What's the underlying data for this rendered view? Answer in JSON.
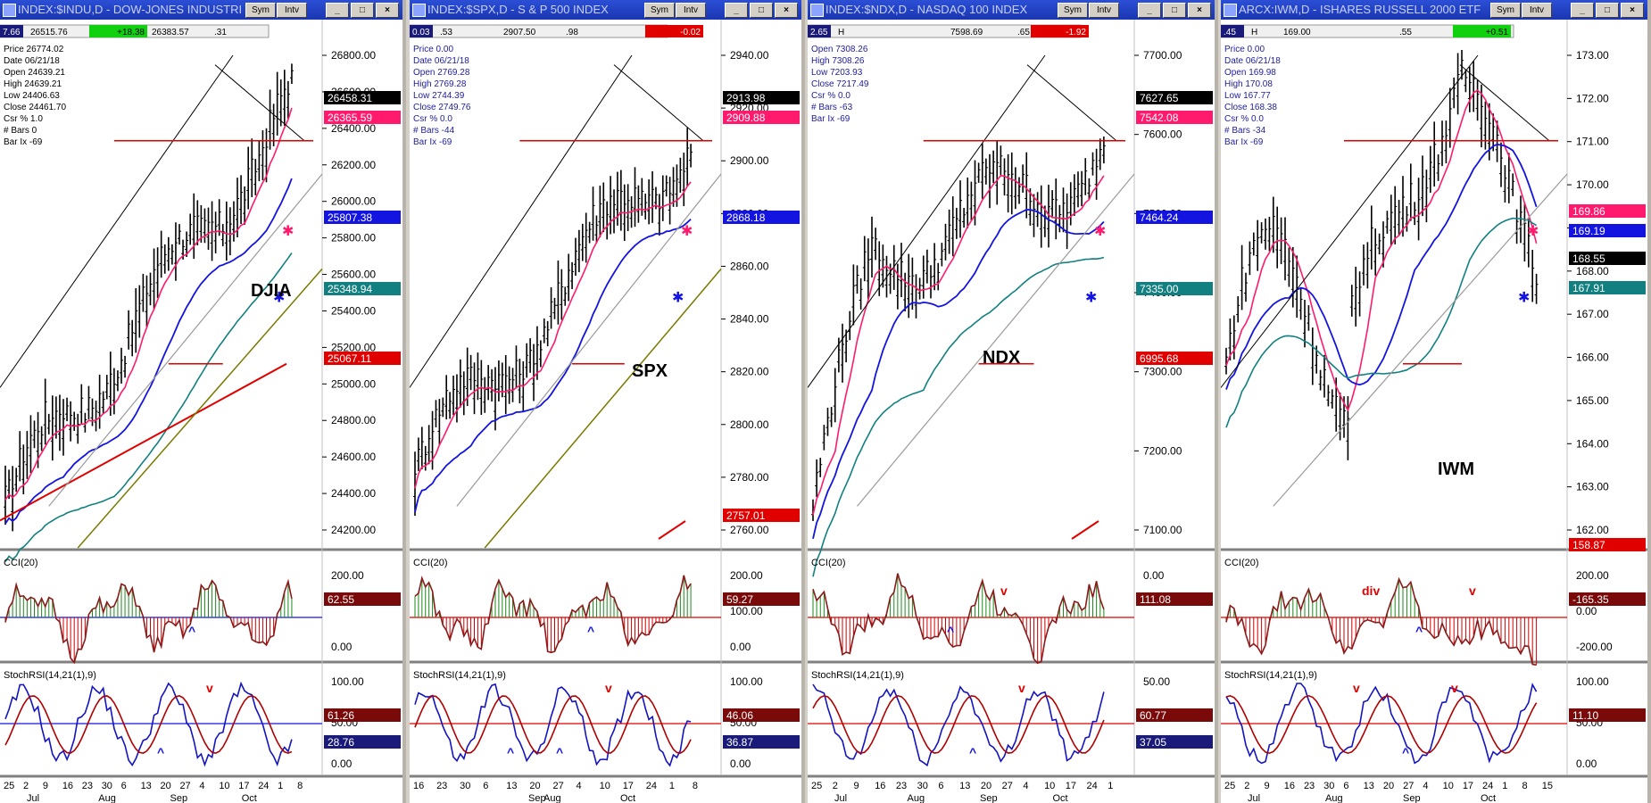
{
  "colors": {
    "price": "#000000",
    "ma_fast": "#ff1a6e",
    "ma_blue": "#1414e0",
    "ma_teal": "#128080",
    "ma_red": "#e00000",
    "olive": "#7a7a00",
    "gray": "#9a9a9a",
    "cci_pos": "#1a8a1a",
    "cci_neg": "#d00000",
    "stoch_blue": "#1414c0",
    "stoch_red": "#b00000"
  },
  "icons": [
    "system-menu-icon",
    "minimize-icon",
    "maximize-icon",
    "close-icon",
    "star-marker-icon",
    "caret-marker-icon"
  ],
  "panels": [
    {
      "title": "INDEX:$INDU,D - DOW-JONES INDUSTRI",
      "sym_label": "Sym",
      "intv_label": "Intv",
      "quote": {
        "open_box": "7.66",
        "val1": "26515.76",
        "change": "+18.38",
        "val2": "26383.57",
        "val3": ".31"
      },
      "info": [
        "Price 26774.02",
        "Date 06/21/18",
        "Open 24639.21",
        "High 24639.21",
        "Low 24406.63",
        "Close 24461.70",
        "Csr % 1.0",
        "# Bars 0",
        "Bar Ix -69"
      ],
      "chart_label": "DJIA",
      "price_tags": [
        {
          "text": "26458.31",
          "bg": "#000000"
        },
        {
          "text": "26365.59",
          "bg": "#ff1a6e"
        },
        {
          "text": "25807.38",
          "bg": "#1414e0"
        },
        {
          "text": "25348.94",
          "bg": "#128080"
        },
        {
          "text": "25067.11",
          "bg": "#e00000"
        }
      ],
      "y_ticks": [
        "26800.00",
        "26600.00",
        "26400.00",
        "26200.00",
        "26000.00",
        "25800.00",
        "25600.00",
        "25400.00",
        "25200.00",
        "25000.00",
        "24800.00",
        "24600.00",
        "24400.00",
        "24200.00"
      ],
      "cci": {
        "title": "CCI(20)",
        "ticks": [
          "200.00",
          "0.00"
        ],
        "tag": "62.55",
        "annotations": [
          "^"
        ]
      },
      "stoch": {
        "title": "StochRSI(14,21(1),9)",
        "ticks": [
          "100.00",
          "50.00",
          "0.00"
        ],
        "tags": [
          "61.26",
          "28.76"
        ],
        "annotations": [
          "v",
          "^"
        ]
      },
      "x_days": [
        "25",
        "2",
        "9",
        "16",
        "23",
        "30",
        "6",
        "13",
        "20",
        "27",
        "4",
        "10",
        "17",
        "24",
        "1",
        "8"
      ],
      "x_months": [
        "Jul",
        "Aug",
        "Sep",
        "Oct"
      ]
    },
    {
      "title": "INDEX:$SPX,D - S & P 500 INDEX",
      "sym_label": "Sym",
      "intv_label": "Intv",
      "quote": {
        "open_box": "0.03",
        "val1": ".53",
        "val2": "2907.50",
        "val3": ".98",
        "change": "-0.02"
      },
      "info": [
        "Price 0.00",
        "Date 06/21/18",
        "Open 2769.28",
        "High 2769.28",
        "Low 2744.39",
        "Close 2749.76",
        "Csr % 0.0",
        "# Bars -44",
        "Bar Ix -69"
      ],
      "chart_label": "SPX",
      "price_tags": [
        {
          "text": "2913.98",
          "bg": "#000000"
        },
        {
          "text": "2909.88",
          "bg": "#ff1a6e"
        },
        {
          "text": "2868.18",
          "bg": "#1414e0"
        },
        {
          "text": "2757.01",
          "bg": "#e00000"
        }
      ],
      "y_ticks": [
        "2940.00",
        "2920.00",
        "2900.00",
        "2880.00",
        "2860.00",
        "2840.00",
        "2820.00",
        "2800.00",
        "2780.00",
        "2760.00"
      ],
      "cci": {
        "title": "CCI(20)",
        "ticks": [
          "200.00",
          "100.00",
          "0.00"
        ],
        "tag": "59.27",
        "annotations": [
          "^"
        ]
      },
      "stoch": {
        "title": "StochRSI(14,21(1),9)",
        "ticks": [
          "100.00",
          "50.00",
          "0.00"
        ],
        "tags": [
          "46.06",
          "36.87"
        ],
        "annotations": [
          "v",
          "^",
          "^"
        ]
      },
      "x_days": [
        "16",
        "23",
        "30",
        "6",
        "13",
        "20",
        "27",
        "4",
        "10",
        "17",
        "24",
        "1",
        "8"
      ],
      "x_months": [
        "Aug",
        "Sep",
        "Oct"
      ]
    },
    {
      "title": "INDEX:$NDX,D - NASDAQ 100 INDEX",
      "sym_label": "Sym",
      "intv_label": "Intv",
      "quote": {
        "open_box": "2.65",
        "val1": "H",
        "val2": "7598.69",
        "change": "-1.92",
        "val3": ".65"
      },
      "info": [
        "Open 7308.26",
        "High 7308.26",
        "Low 7203.93",
        "Close 7217.49",
        "Csr % 0.0",
        "# Bars -63",
        "Bar Ix -69"
      ],
      "chart_label": "NDX",
      "price_tags": [
        {
          "text": "7627.65",
          "bg": "#000000"
        },
        {
          "text": "7542.08",
          "bg": "#ff1a6e"
        },
        {
          "text": "7464.24",
          "bg": "#1414e0"
        },
        {
          "text": "7335.00",
          "bg": "#128080"
        },
        {
          "text": "6995.68",
          "bg": "#e00000"
        }
      ],
      "y_ticks": [
        "7700.00",
        "7600.00",
        "7500.00",
        "7400.00",
        "7300.00",
        "7200.00",
        "7100.00"
      ],
      "cci": {
        "title": "CCI(20)",
        "ticks": [
          "0.00"
        ],
        "tag": "111.08",
        "annotations": [
          "v",
          "^"
        ]
      },
      "stoch": {
        "title": "StochRSI(14,21(1),9)",
        "ticks": [
          "50.00"
        ],
        "tags": [
          "60.77",
          "37.05"
        ],
        "annotations": [
          "v",
          "^"
        ]
      },
      "x_days": [
        "25",
        "2",
        "9",
        "16",
        "23",
        "30",
        "6",
        "13",
        "20",
        "27",
        "4",
        "10",
        "17",
        "24",
        "1"
      ],
      "x_months": [
        "Jul",
        "Aug",
        "Sep",
        "Oct"
      ]
    },
    {
      "title": "ARCX:IWM,D - ISHARES RUSSELL 2000 ETF",
      "sym_label": "Sym",
      "intv_label": "Intv",
      "quote": {
        "open_box": ".45",
        "val1": "H",
        "val2": "169.00",
        "val3": ".55",
        "change": "+0.51"
      },
      "info": [
        "Price 0.00",
        "Date 06/21/18",
        "Open 169.98",
        "High 170.08",
        "Low 167.77",
        "Close 168.38",
        "Csr % 0.0",
        "# Bars -34",
        "Bar Ix -69"
      ],
      "chart_label": "IWM",
      "price_tags": [
        {
          "text": "169.86",
          "bg": "#ff1a6e"
        },
        {
          "text": "169.19",
          "bg": "#1414e0"
        },
        {
          "text": "168.55",
          "bg": "#000000"
        },
        {
          "text": "167.91",
          "bg": "#128080"
        },
        {
          "text": "158.87",
          "bg": "#e00000"
        }
      ],
      "y_ticks": [
        "173.00",
        "172.00",
        "171.00",
        "170.00",
        "169.00",
        "168.00",
        "167.00",
        "166.00",
        "165.00",
        "164.00",
        "163.00",
        "162.00"
      ],
      "cci": {
        "title": "CCI(20)",
        "ticks": [
          "200.00",
          "0.00",
          "-200.00"
        ],
        "tag": "-165.35",
        "annotations": [
          "v",
          "^",
          "div"
        ]
      },
      "stoch": {
        "title": "StochRSI(14,21(1),9)",
        "ticks": [
          "100.00",
          "50.00",
          "0.00"
        ],
        "tags": [
          "11.10"
        ],
        "annotations": [
          "v",
          "^",
          "v"
        ]
      },
      "x_days": [
        "25",
        "2",
        "9",
        "16",
        "23",
        "30",
        "6",
        "13",
        "20",
        "27",
        "4",
        "10",
        "17",
        "24",
        "1",
        "8",
        "15"
      ],
      "x_months": [
        "Jul",
        "Aug",
        "Sep",
        "Oct"
      ]
    }
  ]
}
